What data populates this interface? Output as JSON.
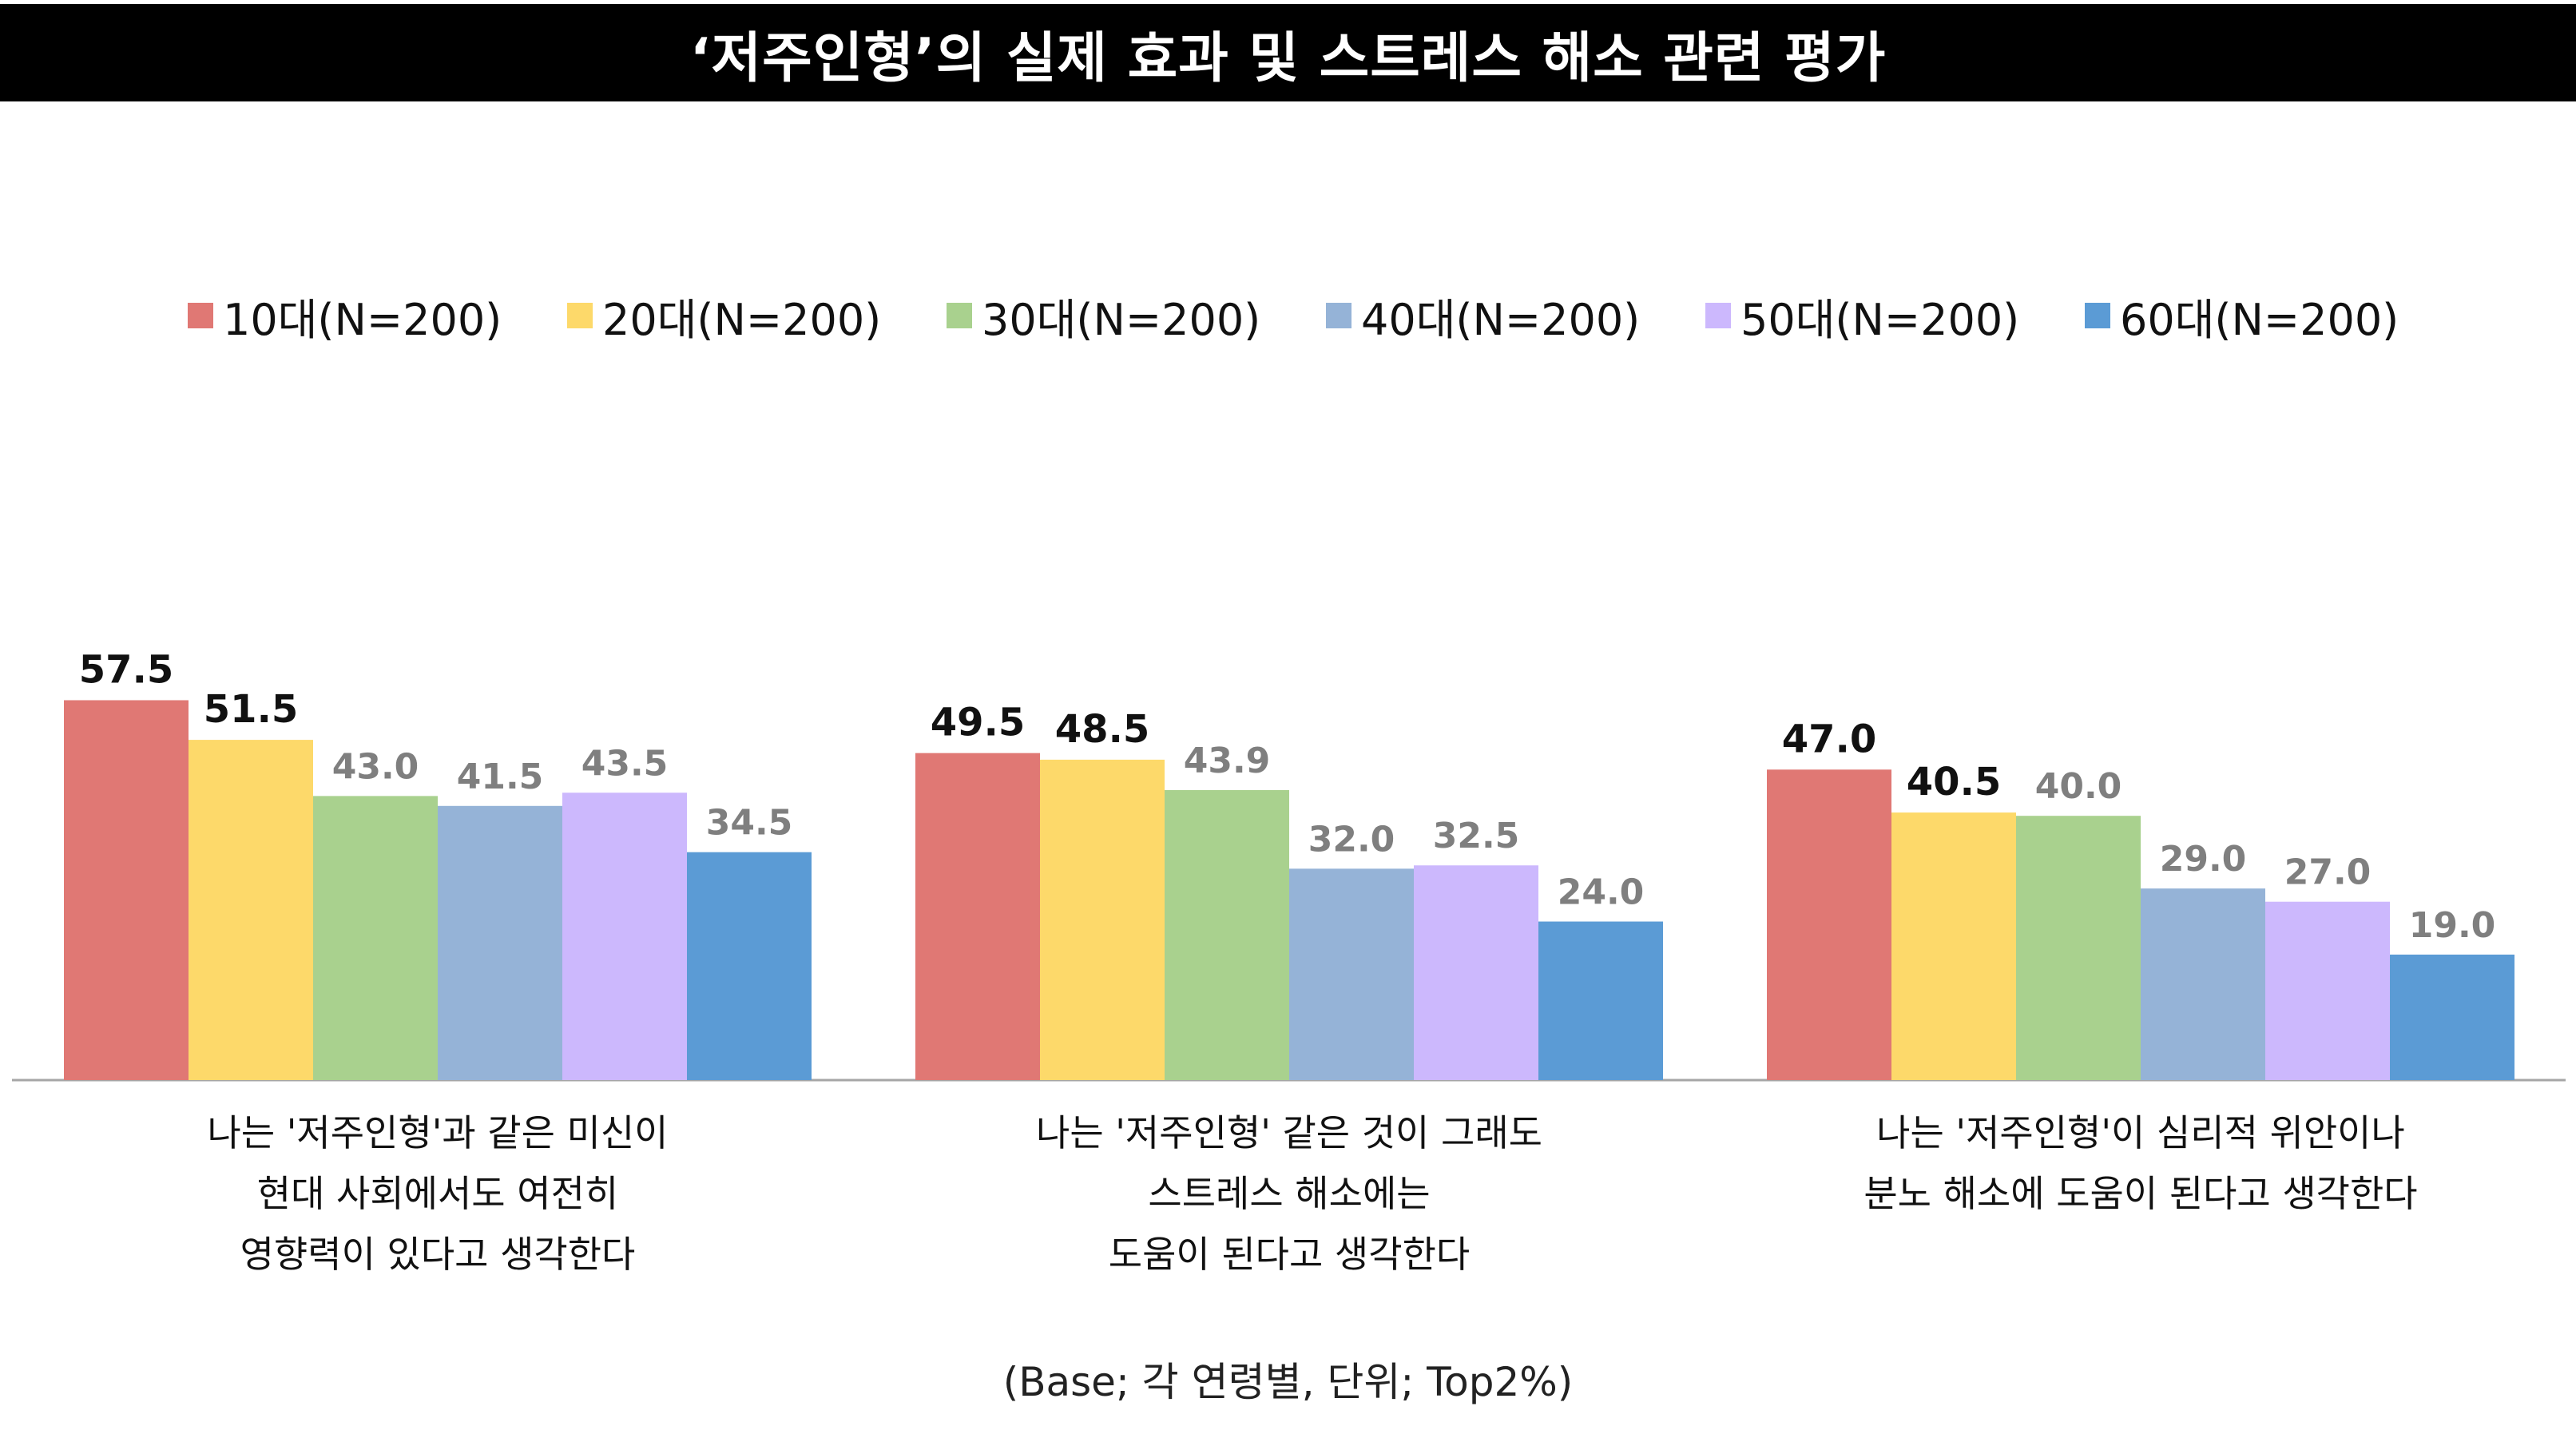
{
  "title": "‘저주인형’의 실제 효과 및 스트레스 해소 관련 평가",
  "footnote": "(Base; 각 연령별, 단위; Top2%)",
  "chart_data": {
    "type": "bar",
    "categories": [
      [
        "나는 '저주인형'과 같은 미신이",
        "현대 사회에서도 여전히",
        "영향력이 있다고 생각한다"
      ],
      [
        "나는 '저주인형' 같은 것이 그래도",
        "스트레스 해소에는",
        "도움이 된다고 생각한다"
      ],
      [
        "나는 '저주인형'이 심리적 위안이나",
        "분노 해소에 도움이 된다고 생각한다"
      ]
    ],
    "series": [
      {
        "name": "10대(N=200)",
        "color": "#E07874",
        "values": [
          57.5,
          49.5,
          47.0
        ],
        "labels": [
          "57.5",
          "49.5",
          "47.0"
        ],
        "highlight": [
          true,
          true,
          true
        ]
      },
      {
        "name": "20대(N=200)",
        "color": "#FDD96A",
        "values": [
          51.5,
          48.5,
          40.5
        ],
        "labels": [
          "51.5",
          "48.5",
          "40.5"
        ],
        "highlight": [
          true,
          true,
          true
        ]
      },
      {
        "name": "30대(N=200)",
        "color": "#A9D18E",
        "values": [
          43.0,
          43.9,
          40.0
        ],
        "labels": [
          "43.0",
          "43.9",
          "40.0"
        ],
        "highlight": [
          false,
          false,
          false
        ]
      },
      {
        "name": "40대(N=200)",
        "color": "#95B3D7",
        "values": [
          41.5,
          32.0,
          29.0
        ],
        "labels": [
          "41.5",
          "32.0",
          "29.0"
        ],
        "highlight": [
          false,
          false,
          false
        ]
      },
      {
        "name": "50대(N=200)",
        "color": "#CCB8FD",
        "values": [
          43.5,
          32.5,
          27.0
        ],
        "labels": [
          "43.5",
          "32.5",
          "27.0"
        ],
        "highlight": [
          false,
          false,
          false
        ]
      },
      {
        "name": "60대(N=200)",
        "color": "#5B9BD5",
        "values": [
          34.5,
          24.0,
          19.0
        ],
        "labels": [
          "34.5",
          "24.0",
          "19.0"
        ],
        "highlight": [
          false,
          false,
          false
        ]
      }
    ],
    "ylim": [
      0,
      100
    ],
    "grid": false,
    "legend_position": "top"
  },
  "colors": {
    "label_highlight": "#111111",
    "label_muted": "#7F7F7F",
    "axis": "#A6A6A6"
  }
}
